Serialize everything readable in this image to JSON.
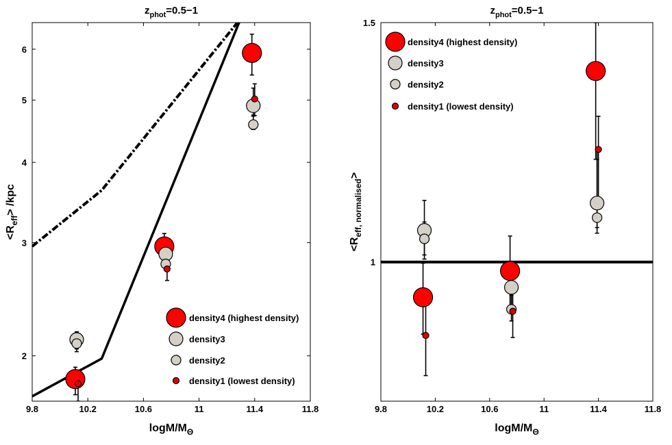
{
  "chart_data": [
    {
      "type": "scatter",
      "title": "z_phot=0.5−1",
      "title_main": "z",
      "title_sub": "phot",
      "title_rest": "=0.5−1",
      "xlabel": "logM/M",
      "xlabel_sub": "Θ",
      "ylabel": "<R",
      "ylabel_sub": "eff",
      "ylabel_rest": "> /kpc",
      "y_scale": "log",
      "xlim": [
        9.8,
        11.8
      ],
      "ylim": [
        1.7,
        6.6
      ],
      "xticks": [
        "9.8",
        "10.2",
        "10.6",
        "11",
        "11.4",
        "11.8"
      ],
      "yticks": [
        "2",
        "3",
        "4",
        "5",
        "6"
      ],
      "legend_position": "lower-right",
      "series": [
        {
          "name": "density4 (highest density)",
          "color": "#ff0000",
          "marker_size": "large",
          "points": [
            {
              "x": 10.11,
              "y": 1.84,
              "yerr": [
                1.74,
                1.92
              ]
            },
            {
              "x": 10.75,
              "y": 2.96,
              "yerr": [
                2.82,
                3.1
              ]
            },
            {
              "x": 11.38,
              "y": 5.92,
              "yerr": [
                5.47,
                6.33
              ]
            }
          ]
        },
        {
          "name": "density3",
          "color": "#d4d0c8",
          "marker_size": "medium",
          "points": [
            {
              "x": 10.12,
              "y": 2.12,
              "yerr": [
                2.05,
                2.18
              ]
            },
            {
              "x": 10.76,
              "y": 2.88,
              "yerr": [
                2.8,
                2.95
              ]
            },
            {
              "x": 11.39,
              "y": 4.9,
              "yerr": [
                4.74,
                5.22
              ]
            }
          ]
        },
        {
          "name": "density2",
          "color": "#d4d0c8",
          "marker_size": "small",
          "points": [
            {
              "x": 10.12,
              "y": 2.09,
              "yerr": [
                2.03,
                2.17
              ]
            },
            {
              "x": 10.76,
              "y": 2.78,
              "yerr": [
                2.72,
                2.85
              ]
            },
            {
              "x": 11.39,
              "y": 4.58,
              "yerr": [
                4.5,
                4.72
              ]
            }
          ]
        },
        {
          "name": "density1 (lowest density)",
          "color": "#e00000",
          "marker_size": "tiny",
          "points": [
            {
              "x": 10.13,
              "y": 1.81,
              "yerr": [
                1.7,
                1.9
              ]
            },
            {
              "x": 10.77,
              "y": 2.73,
              "yerr": [
                2.62,
                2.85
              ]
            },
            {
              "x": 11.4,
              "y": 5.02,
              "yerr": [
                4.73,
                5.3
              ]
            }
          ]
        }
      ],
      "lines": [
        {
          "name": "relation-solid",
          "style": "solid",
          "points": [
            [
              9.8,
              1.73
            ],
            [
              10.3,
              1.98
            ],
            [
              11.3,
              6.7
            ]
          ]
        },
        {
          "name": "relation-dashdot",
          "style": "dashdot",
          "points": [
            [
              9.8,
              2.96
            ],
            [
              10.3,
              3.62
            ],
            [
              11.3,
              6.7
            ]
          ]
        }
      ]
    },
    {
      "type": "scatter",
      "title": "z_phot=0.5−1",
      "title_main": "z",
      "title_sub": "phot",
      "title_rest": "=0.5−1",
      "xlabel": "logM/M",
      "xlabel_sub": "Θ",
      "ylabel": "<R",
      "ylabel_sub": "eff, normalised",
      "ylabel_rest": ">",
      "y_scale": "log",
      "xlim": [
        9.8,
        11.8
      ],
      "ylim": [
        0.79,
        1.5
      ],
      "xticks": [
        "9.8",
        "10.2",
        "10.6",
        "11",
        "11.4",
        "11.8"
      ],
      "yticks": [
        "1",
        "1.5"
      ],
      "legend_position": "upper-left",
      "reference_line": 1,
      "series": [
        {
          "name": "density4 (highest density)",
          "color": "#ff0000",
          "marker_size": "large",
          "points": [
            {
              "x": 10.11,
              "y": 0.942,
              "yerr": [
                0.885,
                0.998
              ]
            },
            {
              "x": 10.75,
              "y": 0.985,
              "yerr": [
                0.925,
                1.045
              ]
            },
            {
              "x": 11.38,
              "y": 1.382,
              "yerr": [
                1.19,
                1.5
              ]
            }
          ]
        },
        {
          "name": "density3",
          "color": "#d4d0c8",
          "marker_size": "medium",
          "points": [
            {
              "x": 10.12,
              "y": 1.055,
              "yerr": [
                1.012,
                1.11
              ]
            },
            {
              "x": 10.76,
              "y": 0.958,
              "yerr": [
                0.93,
                0.99
              ]
            },
            {
              "x": 11.39,
              "y": 1.105,
              "yerr": [
                1.06,
                1.21
              ]
            }
          ]
        },
        {
          "name": "density2",
          "color": "#d4d0c8",
          "marker_size": "small",
          "points": [
            {
              "x": 10.12,
              "y": 1.04,
              "yerr": [
                1.005,
                1.07
              ]
            },
            {
              "x": 10.76,
              "y": 0.923,
              "yerr": [
                0.905,
                0.945
              ]
            },
            {
              "x": 11.39,
              "y": 1.078,
              "yerr": [
                1.05,
                1.19
              ]
            }
          ]
        },
        {
          "name": "density1 (lowest density)",
          "color": "#e00000",
          "marker_size": "tiny",
          "points": [
            {
              "x": 10.13,
              "y": 0.883,
              "yerr": [
                0.825,
                0.93
              ]
            },
            {
              "x": 10.77,
              "y": 0.92,
              "yerr": [
                0.88,
                0.965
              ]
            },
            {
              "x": 11.4,
              "y": 1.21,
              "yerr": [
                1.1,
                1.28
              ]
            }
          ]
        }
      ]
    }
  ]
}
